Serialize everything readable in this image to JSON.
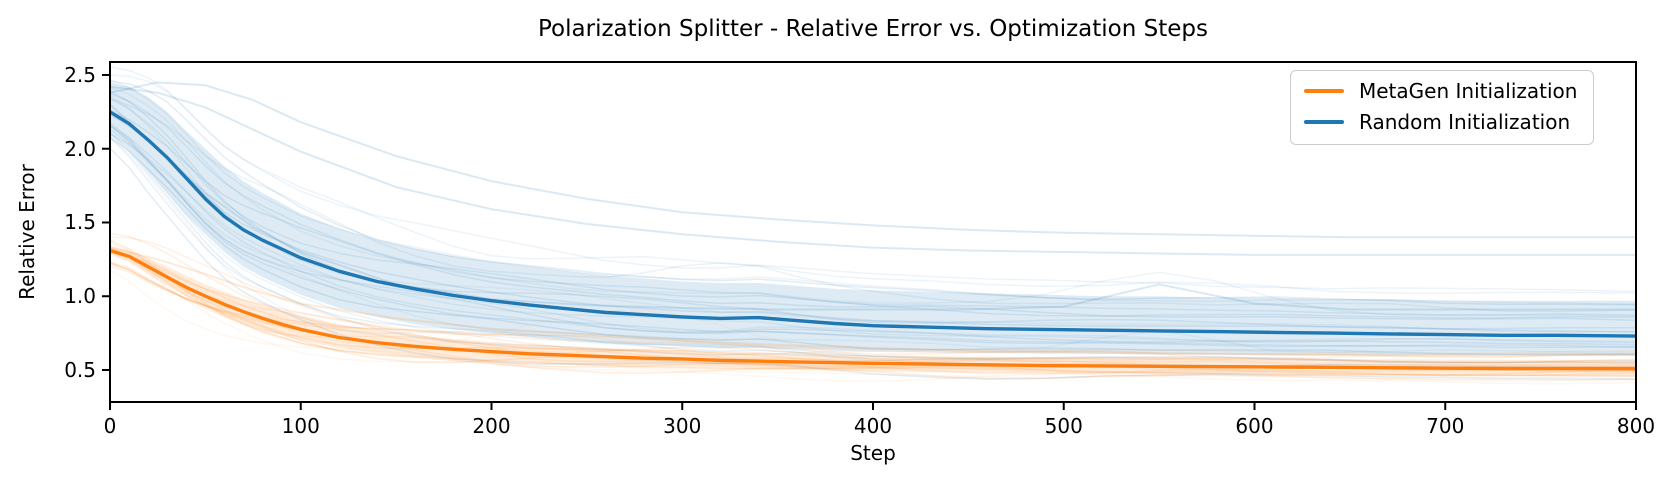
{
  "chart_data": {
    "type": "line",
    "title": "Polarization Splitter - Relative Error vs. Optimization Steps",
    "xlabel": "Step",
    "ylabel": "Relative Error",
    "xlim": [
      0,
      800
    ],
    "ylim": [
      0.283,
      2.588
    ],
    "xticks": [
      0,
      100,
      200,
      300,
      400,
      500,
      600,
      700,
      800
    ],
    "yticks": [
      0.5,
      1.0,
      1.5,
      2.0,
      2.5
    ],
    "grid": false,
    "background": "#ffffff",
    "legend": {
      "position": "upper right",
      "entries": [
        {
          "label": "MetaGen Initialization",
          "color": "#ff7f0e"
        },
        {
          "label": "Random Initialization",
          "color": "#1f77b4"
        }
      ]
    },
    "x": [
      0,
      10,
      20,
      30,
      40,
      50,
      60,
      70,
      80,
      90,
      100,
      120,
      140,
      160,
      180,
      200,
      220,
      240,
      260,
      280,
      300,
      320,
      340,
      360,
      380,
      400,
      430,
      460,
      490,
      520,
      550,
      580,
      610,
      640,
      670,
      700,
      730,
      760,
      800
    ],
    "series": [
      {
        "name": "MetaGen Initialization",
        "color": "#ff7f0e",
        "mean": [
          1.31,
          1.27,
          1.2,
          1.13,
          1.06,
          1.0,
          0.945,
          0.895,
          0.85,
          0.81,
          0.775,
          0.72,
          0.685,
          0.66,
          0.64,
          0.625,
          0.61,
          0.6,
          0.59,
          0.58,
          0.575,
          0.565,
          0.56,
          0.555,
          0.55,
          0.545,
          0.54,
          0.535,
          0.53,
          0.528,
          0.525,
          0.522,
          0.52,
          0.518,
          0.515,
          0.512,
          0.51,
          0.51,
          0.51
        ],
        "band_upper": [
          1.34,
          1.31,
          1.26,
          1.2,
          1.14,
          1.08,
          1.03,
          0.98,
          0.94,
          0.9,
          0.87,
          0.81,
          0.77,
          0.735,
          0.71,
          0.69,
          0.675,
          0.66,
          0.65,
          0.64,
          0.635,
          0.625,
          0.62,
          0.612,
          0.605,
          0.6,
          0.595,
          0.59,
          0.588,
          0.585,
          0.582,
          0.58,
          0.578,
          0.575,
          0.573,
          0.572,
          0.57,
          0.57,
          0.57
        ],
        "band_lower": [
          1.28,
          1.23,
          1.15,
          1.07,
          1.0,
          0.93,
          0.87,
          0.82,
          0.77,
          0.735,
          0.7,
          0.65,
          0.615,
          0.59,
          0.572,
          0.558,
          0.548,
          0.538,
          0.53,
          0.522,
          0.515,
          0.51,
          0.505,
          0.5,
          0.495,
          0.49,
          0.485,
          0.48,
          0.478,
          0.475,
          0.472,
          0.47,
          0.468,
          0.465,
          0.463,
          0.462,
          0.46,
          0.458,
          0.455
        ],
        "spaghetti_runs": 18,
        "bump_prob": 0.08
      },
      {
        "name": "Random Initialization",
        "color": "#1f77b4",
        "mean": [
          2.25,
          2.17,
          2.06,
          1.94,
          1.8,
          1.66,
          1.54,
          1.45,
          1.38,
          1.32,
          1.26,
          1.17,
          1.1,
          1.05,
          1.005,
          0.97,
          0.94,
          0.915,
          0.89,
          0.875,
          0.86,
          0.85,
          0.855,
          0.835,
          0.815,
          0.8,
          0.79,
          0.78,
          0.775,
          0.77,
          0.765,
          0.76,
          0.755,
          0.75,
          0.745,
          0.74,
          0.735,
          0.735,
          0.73
        ],
        "band_upper": [
          2.45,
          2.42,
          2.35,
          2.25,
          2.12,
          2.0,
          1.88,
          1.78,
          1.7,
          1.63,
          1.56,
          1.46,
          1.38,
          1.32,
          1.27,
          1.23,
          1.2,
          1.17,
          1.14,
          1.12,
          1.1,
          1.09,
          1.09,
          1.07,
          1.05,
          1.04,
          1.03,
          1.02,
          1.01,
          1.0,
          1.0,
          0.99,
          0.99,
          0.98,
          0.98,
          0.97,
          0.97,
          0.97,
          0.97
        ],
        "band_lower": [
          2.1,
          2.0,
          1.85,
          1.7,
          1.55,
          1.42,
          1.3,
          1.2,
          1.13,
          1.07,
          1.01,
          0.92,
          0.86,
          0.81,
          0.775,
          0.75,
          0.725,
          0.705,
          0.685,
          0.67,
          0.66,
          0.65,
          0.65,
          0.64,
          0.63,
          0.625,
          0.62,
          0.615,
          0.61,
          0.61,
          0.605,
          0.605,
          0.6,
          0.6,
          0.6,
          0.6,
          0.6,
          0.6,
          0.6
        ],
        "spaghetti_runs": 24,
        "bump_prob": 0.2
      }
    ],
    "outlier_runs": {
      "x": [
        0,
        25,
        50,
        75,
        100,
        150,
        200,
        250,
        300,
        350,
        400,
        450,
        500,
        550,
        600,
        650,
        700,
        750,
        800
      ],
      "runs": [
        {
          "series": "Random Initialization",
          "color": "#1f77b4",
          "y": [
            2.38,
            2.45,
            2.43,
            2.33,
            2.18,
            1.95,
            1.78,
            1.66,
            1.57,
            1.52,
            1.48,
            1.45,
            1.43,
            1.42,
            1.41,
            1.4,
            1.4,
            1.4,
            1.4
          ]
        },
        {
          "series": "Random Initialization",
          "color": "#1f77b4",
          "y": [
            2.42,
            2.38,
            2.28,
            2.13,
            1.98,
            1.74,
            1.59,
            1.49,
            1.42,
            1.37,
            1.33,
            1.31,
            1.3,
            1.29,
            1.28,
            1.28,
            1.28,
            1.28,
            1.28
          ]
        },
        {
          "series": "Random Initialization",
          "color": "#1f77b4",
          "y": [
            2.3,
            2.0,
            1.7,
            1.47,
            1.3,
            1.08,
            0.98,
            0.94,
            0.92,
            0.91,
            0.91,
            0.91,
            0.93,
            1.08,
            0.95,
            0.91,
            0.91,
            0.91,
            0.91
          ]
        },
        {
          "series": "MetaGen Initialization",
          "color": "#ff7f0e",
          "y": [
            1.33,
            1.25,
            1.15,
            1.04,
            0.95,
            0.85,
            0.78,
            0.74,
            0.7,
            0.67,
            0.65,
            0.63,
            0.62,
            0.61,
            0.605,
            0.6,
            0.6,
            0.6,
            0.6
          ]
        }
      ]
    },
    "style": {
      "band_opacity": 0.15,
      "spaghetti_opacity": 0.09,
      "seed": 7
    }
  }
}
